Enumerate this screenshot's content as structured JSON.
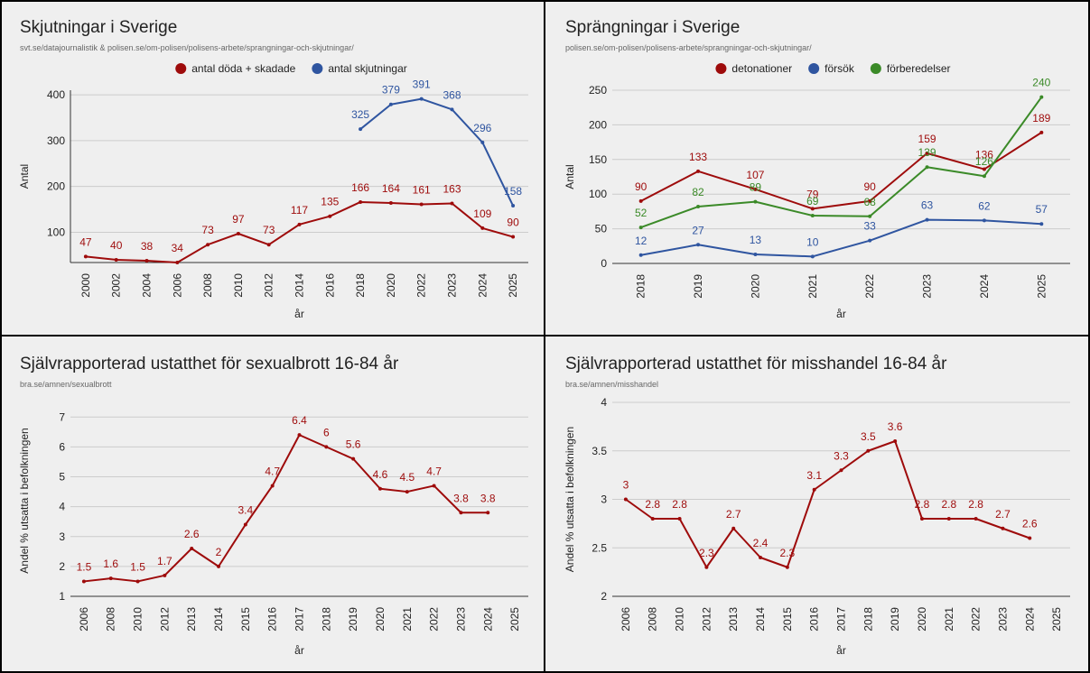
{
  "chart_data": [
    {
      "type": "line",
      "title": "Skjutningar i Sverige",
      "subtitle": "svt.se/datajournalistik & polisen.se/om-polisen/polisens-arbete/sprangningar-och-skjutningar/",
      "xlabel": "år",
      "ylabel": "Antal",
      "categories": [
        "2000",
        "2002",
        "2004",
        "2006",
        "2008",
        "2010",
        "2012",
        "2014",
        "2016",
        "2018",
        "2020",
        "2022",
        "2023",
        "2024",
        "2025"
      ],
      "series": [
        {
          "name": "antal döda + skadade",
          "color": "#9e0b0b",
          "values": [
            47,
            40,
            38,
            34,
            73,
            97,
            73,
            117,
            135,
            166,
            164,
            161,
            163,
            109,
            90
          ]
        },
        {
          "name": "antal skjutningar",
          "color": "#2f55a0",
          "values": [
            null,
            null,
            null,
            null,
            null,
            null,
            null,
            null,
            null,
            325,
            379,
            391,
            368,
            296,
            158
          ]
        }
      ],
      "ylim": [
        34,
        410
      ],
      "yticks": [
        100,
        200,
        300,
        400
      ],
      "grid": true
    },
    {
      "type": "line",
      "title": "Sprängningar i Sverige",
      "subtitle": "polisen.se/om-polisen/polisens-arbete/sprangningar-och-skjutningar/",
      "xlabel": "år",
      "ylabel": "Antal",
      "categories": [
        "2018",
        "2019",
        "2020",
        "2021",
        "2022",
        "2023",
        "2024",
        "2025"
      ],
      "series": [
        {
          "name": "detonationer",
          "color": "#9e0b0b",
          "values": [
            90,
            133,
            107,
            79,
            90,
            159,
            136,
            189
          ]
        },
        {
          "name": "försök",
          "color": "#2f55a0",
          "values": [
            12,
            27,
            13,
            10,
            33,
            63,
            62,
            57
          ]
        },
        {
          "name": "förberedelser",
          "color": "#3b8a28",
          "values": [
            52,
            82,
            89,
            69,
            68,
            139,
            126,
            240
          ]
        }
      ],
      "ylim": [
        0,
        250
      ],
      "yticks": [
        0,
        50,
        100,
        150,
        200,
        250
      ],
      "grid": true
    },
    {
      "type": "line",
      "title": "Självrapporterad ustatthet för sexualbrott 16-84 år",
      "subtitle": "bra.se/amnen/sexualbrott",
      "xlabel": "år",
      "ylabel": "Andel % utsatta i befolkningen",
      "categories": [
        "2006",
        "2008",
        "2010",
        "2012",
        "2013",
        "2014",
        "2015",
        "2016",
        "2017",
        "2018",
        "2019",
        "2020",
        "2021",
        "2022",
        "2023",
        "2024",
        "2025"
      ],
      "series": [
        {
          "color": "#9e0b0b",
          "values": [
            1.5,
            1.6,
            1.5,
            1.7,
            2.6,
            2,
            3.4,
            4.7,
            6.4,
            6,
            5.6,
            4.6,
            4.5,
            4.7,
            3.8,
            3.8,
            null
          ]
        }
      ],
      "ylim": [
        1,
        7.4
      ],
      "yticks": [
        1,
        2,
        3,
        4,
        5,
        6,
        7
      ],
      "grid": true
    },
    {
      "type": "line",
      "title": "Självrapporterad ustatthet för misshandel 16-84 år",
      "subtitle": "bra.se/amnen/misshandel",
      "xlabel": "år",
      "ylabel": "Andel % utsatta i befolkningen",
      "categories": [
        "2006",
        "2008",
        "2010",
        "2012",
        "2013",
        "2014",
        "2015",
        "2016",
        "2017",
        "2018",
        "2019",
        "2020",
        "2021",
        "2022",
        "2023",
        "2024",
        "2025"
      ],
      "series": [
        {
          "color": "#9e0b0b",
          "values": [
            3,
            2.8,
            2.8,
            2.3,
            2.7,
            2.4,
            2.3,
            3.1,
            3.3,
            3.5,
            3.6,
            2.8,
            2.8,
            2.8,
            2.7,
            2.6,
            null
          ]
        }
      ],
      "ylim": [
        2,
        4
      ],
      "yticks": [
        2,
        2.5,
        3,
        3.5,
        4
      ],
      "grid": true
    }
  ]
}
